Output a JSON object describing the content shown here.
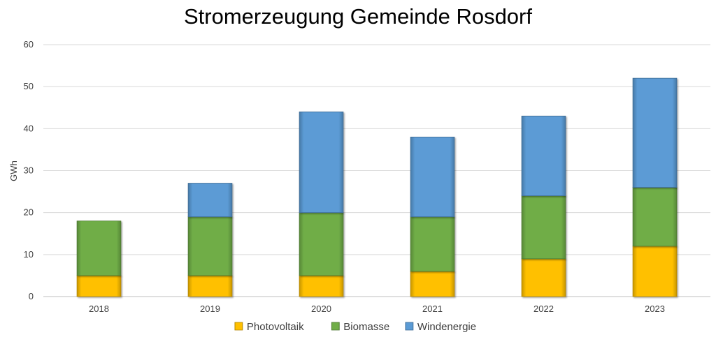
{
  "chart_data": {
    "type": "bar",
    "stacked": true,
    "title": "Stromerzeugung Gemeinde Rosdorf",
    "ylabel": "GWh",
    "xlabel": "",
    "ylim": [
      0,
      60
    ],
    "yticks": [
      0,
      10,
      20,
      30,
      40,
      50,
      60
    ],
    "grid": true,
    "legend_position": "bottom",
    "categories": [
      "2018",
      "2019",
      "2020",
      "2021",
      "2022",
      "2023"
    ],
    "series": [
      {
        "name": "Photovoltaik",
        "color": "#FFC000",
        "values": [
          5,
          5,
          5,
          6,
          9,
          12
        ]
      },
      {
        "name": "Biomasse",
        "color": "#70AD47",
        "values": [
          13,
          14,
          15,
          13,
          15,
          14
        ]
      },
      {
        "name": "Windenergie",
        "color": "#5B9BD5",
        "values": [
          0,
          8,
          24,
          19,
          19,
          26
        ]
      }
    ]
  }
}
